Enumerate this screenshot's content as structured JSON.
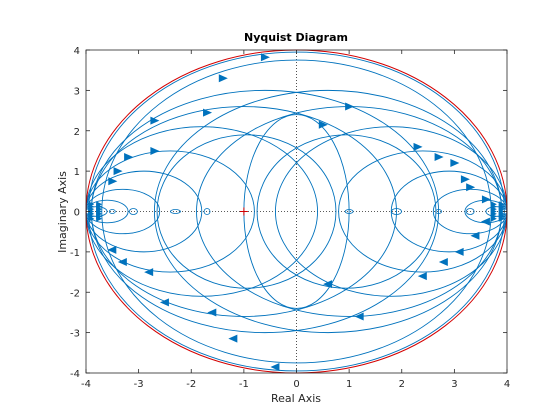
{
  "chart_data": {
    "type": "line",
    "title": "Nyquist Diagram",
    "xlabel": "Real Axis",
    "ylabel": "Imaginary Axis",
    "xlim": [
      -4,
      4
    ],
    "ylim": [
      -4,
      4
    ],
    "xticks": [
      -4,
      -3,
      -2,
      -1,
      0,
      1,
      2,
      3,
      4
    ],
    "yticks": [
      -4,
      -3,
      -2,
      -1,
      0,
      1,
      2,
      3,
      4
    ],
    "grid": "dotted zero lines",
    "critical_point": {
      "x": -1,
      "y": 0,
      "marker": "+"
    },
    "colors": {
      "curve": "#0072BD",
      "envelope": "#D40000",
      "critical": "#D40000",
      "axes": "#262626",
      "zero_lines": "#262626"
    },
    "envelope": {
      "center": [
        0,
        0
      ],
      "radius_x": 4,
      "radius_y": 4
    },
    "series": [
      {
        "circles": [
          {
            "cx": 0.0,
            "cy": 0,
            "rx": 3.95,
            "ry": 3.95
          },
          {
            "cx": 0.0,
            "cy": 0,
            "rx": 3.7,
            "ry": 3.75
          },
          {
            "cx": -0.6,
            "cy": 0,
            "rx": 3.3,
            "ry": 3.0
          },
          {
            "cx": 0.6,
            "cy": 0,
            "rx": 3.3,
            "ry": 3.0
          },
          {
            "cx": -1.0,
            "cy": 0,
            "rx": 2.9,
            "ry": 2.6
          },
          {
            "cx": 1.0,
            "cy": 0,
            "rx": 2.9,
            "ry": 2.6
          },
          {
            "cx": -1.8,
            "cy": 0,
            "rx": 2.2,
            "ry": 2.1
          },
          {
            "cx": 1.8,
            "cy": 0,
            "rx": 2.2,
            "ry": 2.1
          },
          {
            "cx": -2.4,
            "cy": 0,
            "rx": 1.6,
            "ry": 1.5
          },
          {
            "cx": 2.4,
            "cy": 0,
            "rx": 1.6,
            "ry": 1.5
          },
          {
            "cx": -2.9,
            "cy": 0,
            "rx": 1.1,
            "ry": 1.0
          },
          {
            "cx": 2.9,
            "cy": 0,
            "rx": 1.1,
            "ry": 1.0
          },
          {
            "cx": -3.3,
            "cy": 0,
            "rx": 0.7,
            "ry": 0.55
          },
          {
            "cx": 3.3,
            "cy": 0,
            "rx": 0.7,
            "ry": 0.55
          },
          {
            "cx": -3.6,
            "cy": 0,
            "rx": 0.4,
            "ry": 0.28
          },
          {
            "cx": 3.6,
            "cy": 0,
            "rx": 0.4,
            "ry": 0.28
          },
          {
            "cx": -3.8,
            "cy": 0,
            "rx": 0.2,
            "ry": 0.12
          },
          {
            "cx": 3.8,
            "cy": 0,
            "rx": 0.2,
            "ry": 0.12
          },
          {
            "cx": 0.0,
            "cy": 0,
            "rx": 1.0,
            "ry": 2.4
          },
          {
            "cx": -0.95,
            "cy": 0,
            "rx": 1.7,
            "ry": 1.9
          },
          {
            "cx": 0.95,
            "cy": 0,
            "rx": 1.7,
            "ry": 1.9
          }
        ]
      }
    ],
    "direction_arrows": [
      {
        "x": -0.6,
        "y": 3.82,
        "dir": 1
      },
      {
        "x": -1.4,
        "y": 3.3,
        "dir": 1
      },
      {
        "x": -1.7,
        "y": 2.45,
        "dir": 1
      },
      {
        "x": -2.7,
        "y": 2.25,
        "dir": 1
      },
      {
        "x": -2.7,
        "y": 1.5,
        "dir": 1
      },
      {
        "x": -3.2,
        "y": 1.35,
        "dir": 1
      },
      {
        "x": -3.4,
        "y": 1.0,
        "dir": 1
      },
      {
        "x": -3.5,
        "y": 0.75,
        "dir": 1
      },
      {
        "x": 0.5,
        "y": 2.15,
        "dir": 1
      },
      {
        "x": 1.0,
        "y": 2.6,
        "dir": 1
      },
      {
        "x": 2.3,
        "y": 1.6,
        "dir": 1
      },
      {
        "x": 2.7,
        "y": 1.35,
        "dir": 1
      },
      {
        "x": 3.0,
        "y": 1.2,
        "dir": 1
      },
      {
        "x": 3.2,
        "y": 0.8,
        "dir": 1
      },
      {
        "x": 3.3,
        "y": 0.6,
        "dir": 1
      },
      {
        "x": 3.6,
        "y": 0.3,
        "dir": 1
      },
      {
        "x": -0.4,
        "y": -3.85,
        "dir": -1
      },
      {
        "x": -1.2,
        "y": -3.15,
        "dir": -1
      },
      {
        "x": -1.6,
        "y": -2.5,
        "dir": -1
      },
      {
        "x": -2.5,
        "y": -2.25,
        "dir": -1
      },
      {
        "x": -2.8,
        "y": -1.5,
        "dir": -1
      },
      {
        "x": -3.3,
        "y": -1.25,
        "dir": -1
      },
      {
        "x": -3.5,
        "y": -0.95,
        "dir": -1
      },
      {
        "x": 0.6,
        "y": -1.8,
        "dir": -1
      },
      {
        "x": 1.2,
        "y": -2.6,
        "dir": -1
      },
      {
        "x": 2.4,
        "y": -1.6,
        "dir": -1
      },
      {
        "x": 2.8,
        "y": -1.25,
        "dir": -1
      },
      {
        "x": 3.1,
        "y": -1.0,
        "dir": -1
      },
      {
        "x": 3.4,
        "y": -0.6,
        "dir": -1
      },
      {
        "x": 3.6,
        "y": -0.25,
        "dir": -1
      }
    ]
  }
}
